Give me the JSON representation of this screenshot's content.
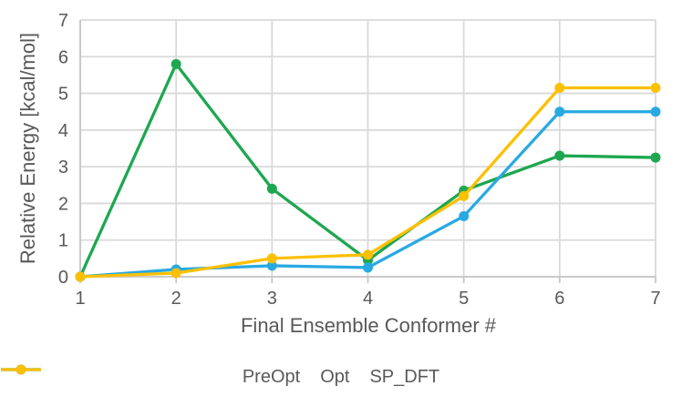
{
  "chart_data": {
    "type": "line",
    "title": "",
    "xlabel": "Final Ensemble Conformer #",
    "ylabel": "Relative Energy [kcal/mol]",
    "x": [
      1,
      2,
      3,
      4,
      5,
      6,
      7
    ],
    "xlim": [
      1,
      7
    ],
    "ylim": [
      0,
      7
    ],
    "x_ticks": [
      1,
      2,
      3,
      4,
      5,
      6,
      7
    ],
    "y_ticks": [
      0,
      1,
      2,
      3,
      4,
      5,
      6,
      7
    ],
    "grid": true,
    "legend_position": "bottom",
    "series": [
      {
        "name": "PreOpt",
        "color": "#1EA750",
        "marker": "circle",
        "values": [
          0,
          5.8,
          2.4,
          0.45,
          2.35,
          3.3,
          3.25
        ]
      },
      {
        "name": "Opt",
        "color": "#29A9E1",
        "marker": "circle",
        "values": [
          0,
          0.2,
          0.3,
          0.25,
          1.65,
          4.5,
          4.5
        ]
      },
      {
        "name": "SP_DFT",
        "color": "#FCC003",
        "marker": "circle",
        "values": [
          0,
          0.1,
          0.5,
          0.6,
          2.2,
          5.15,
          5.15
        ]
      }
    ]
  },
  "styles": {
    "background": "#FFFFFF",
    "text_color": "#595959",
    "grid_color": "#D9D9D9",
    "axis_color": "#C6C6C6"
  }
}
